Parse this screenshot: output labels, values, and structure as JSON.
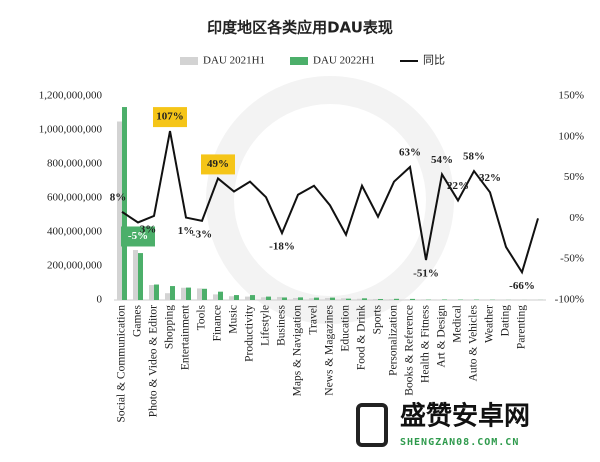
{
  "chart_data": {
    "type": "bar_line",
    "title": "印度地区各类应用DAU表现",
    "categories": [
      "Social & Communication",
      "Games",
      "Photo & Video & Editor",
      "Shopping",
      "Entertainment",
      "Tools",
      "Finance",
      "Music",
      "Productivity",
      "Lifestyle",
      "Business",
      "Maps & Navigation",
      "Travel",
      "News & Magazines",
      "Education",
      "Food & Drink",
      "Sports",
      "Personalization",
      "Books & Reference",
      "Health & Fitness",
      "Art & Design",
      "Medical",
      "Auto & Vehicles",
      "Weather",
      "Dating",
      "Parenting",
      null
    ],
    "series": [
      {
        "name": "DAU 2021H1",
        "color": "#d3d3d3",
        "values": [
          1050000000,
          294000000,
          88000000,
          40000000,
          72000000,
          68000000,
          33000000,
          22000000,
          20000000,
          16000000,
          18000000,
          12000000,
          10000000,
          12000000,
          10000000,
          7000000,
          6000000,
          5000000,
          4000000,
          4000000,
          2000000,
          2000000,
          1500000,
          1200000,
          1000000,
          800000,
          500000
        ]
      },
      {
        "name": "DAU 2022H1",
        "color": "#4caf6a",
        "values": [
          1135000000,
          276000000,
          91000000,
          82000000,
          73000000,
          66000000,
          49000000,
          29000000,
          29000000,
          20000000,
          15000000,
          15500000,
          14000000,
          14000000,
          8000000,
          10000000,
          6000000,
          7000000,
          6500000,
          2000000,
          3000000,
          2400000,
          2400000,
          1600000,
          650000,
          270000,
          500000
        ]
      },
      {
        "name": "同比",
        "color": "#111111",
        "axis": "y2",
        "values": [
          8,
          -5,
          3,
          107,
          1,
          -3,
          49,
          33,
          45,
          26,
          -18,
          29,
          40,
          16,
          -20,
          40,
          2,
          45,
          63,
          -51,
          54,
          22,
          58,
          32,
          -35,
          -66,
          0
        ],
        "value_labels": [
          "8%",
          "-5%",
          "3%",
          "107%",
          "1%",
          "-3%",
          "49%",
          null,
          null,
          null,
          "-18%",
          null,
          null,
          null,
          null,
          null,
          null,
          null,
          "63%",
          "-51%",
          "54%",
          "22%",
          "58%",
          "32%",
          null,
          "-66%",
          null
        ]
      }
    ],
    "ylim": [
      0,
      1200000000
    ],
    "yticks": [
      0,
      {
        "value": 200000000,
        "label": "200,000,000"
      },
      {
        "value": 400000000,
        "label": "400,000,000"
      },
      {
        "value": 600000000,
        "label": "600,000,000"
      },
      {
        "value": 800000000,
        "label": "800,000,000"
      },
      {
        "value": 1000000000,
        "label": "1,000,000,000"
      },
      {
        "value": 1200000000,
        "label": "1,200,000,000"
      }
    ],
    "y2lim": [
      -100,
      150
    ],
    "y2ticks": [
      {
        "value": -100,
        "label": "-100%"
      },
      {
        "value": -50,
        "label": "-50%"
      },
      {
        "value": 0,
        "label": "0%"
      },
      {
        "value": 50,
        "label": "50%"
      },
      {
        "value": 100,
        "label": "100%"
      },
      {
        "value": 150,
        "label": "150%"
      }
    ],
    "legend": "top"
  },
  "watermark": {
    "name": "盛赞安卓网",
    "url": "SHENGZAN08.COM.CN"
  }
}
